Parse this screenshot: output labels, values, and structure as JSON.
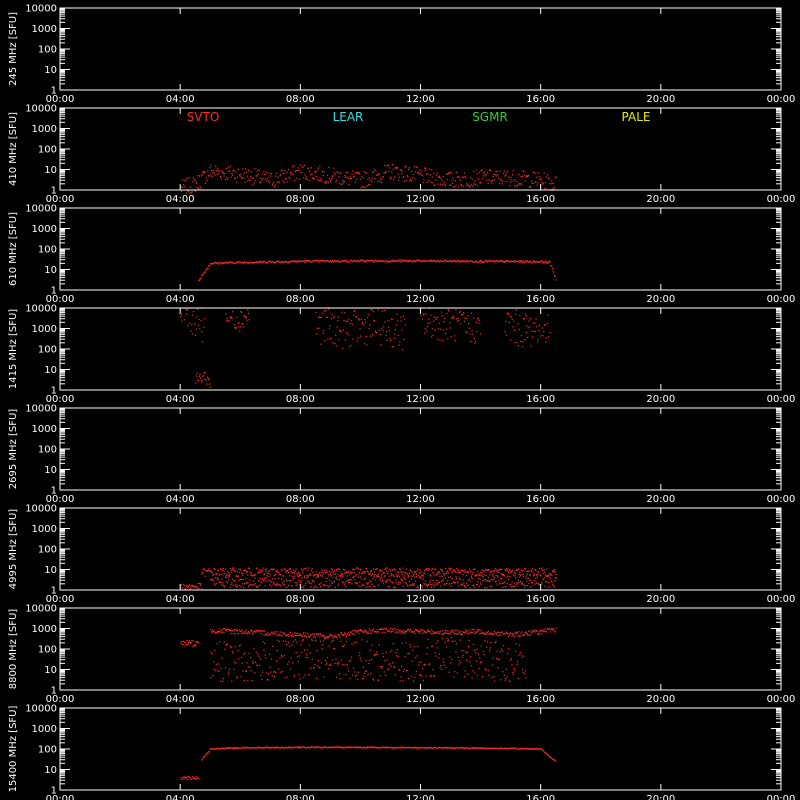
{
  "chart_data": {
    "type": "scatter",
    "x_ticks": [
      "00:00",
      "04:00",
      "08:00",
      "12:00",
      "16:00",
      "20:00",
      "00:00"
    ],
    "y_ticks": [
      "1",
      "10",
      "100",
      "1000",
      "10000"
    ],
    "y_scale": "log",
    "ylim": [
      1,
      10000
    ],
    "xlim_hours": [
      0,
      24
    ],
    "colors": {
      "SVTO": "#ff2a2a",
      "LEAR": "#33dddd",
      "SGMR": "#33cc33",
      "PALE": "#e8e800"
    },
    "legend": [
      {
        "name": "SVTO",
        "color": "#ff2a2a"
      },
      {
        "name": "LEAR",
        "color": "#33dddd"
      },
      {
        "name": "SGMR",
        "color": "#33cc33"
      },
      {
        "name": "PALE",
        "color": "#e8e800"
      }
    ],
    "panels": [
      {
        "ylabel": "245 MHz [SFU]",
        "segments": []
      },
      {
        "ylabel": "410 MHz [SFU]",
        "segments": [
          {
            "x": [
              4.0,
              4.5,
              5.0,
              6.0,
              7.0,
              8.0,
              9.0,
              10.0,
              11.0,
              12.0,
              13.0,
              14.0,
              15.0,
              16.0,
              16.5
            ],
            "y": [
              1.2,
              2,
              8,
              6,
              3,
              8,
              5,
              3,
              8,
              5,
              3,
              4,
              4,
              3,
              2
            ],
            "spread": 0.4
          }
        ]
      },
      {
        "ylabel": "610 MHz [SFU]",
        "segments": [
          {
            "x": [
              4.6,
              5.0,
              6.0,
              8.0,
              10.0,
              12.0,
              14.0,
              16.0,
              16.3,
              16.5
            ],
            "y": [
              3,
              20,
              22,
              25,
              26,
              26,
              25,
              24,
              22,
              3
            ],
            "spread": 0.05
          }
        ]
      },
      {
        "ylabel": "1415 MHz [SFU]",
        "segments": [
          {
            "x": [
              4.0,
              4.2,
              4.4,
              4.8
            ],
            "y": [
              3000,
              8000,
              6000,
              3000
            ],
            "spread": 1.2
          },
          {
            "x": [
              4.5,
              4.8,
              5.0
            ],
            "y": [
              3,
              5,
              2
            ],
            "spread": 0.3
          },
          {
            "x": [
              5.5,
              6.0,
              6.3
            ],
            "y": [
              4000,
              3000,
              5000
            ],
            "spread": 0.6
          },
          {
            "x": [
              8.5,
              9.5,
              10.5,
              11.5
            ],
            "y": [
              1500,
              800,
              1500,
              600
            ],
            "spread": 0.9
          },
          {
            "x": [
              12.0,
              13.0,
              14.0
            ],
            "y": [
              2000,
              1500,
              1000
            ],
            "spread": 0.8
          },
          {
            "x": [
              14.8,
              15.5,
              16.3
            ],
            "y": [
              1500,
              800,
              2000
            ],
            "spread": 0.9
          }
        ]
      },
      {
        "ylabel": "2695 MHz [SFU]",
        "segments": []
      },
      {
        "ylabel": "4995 MHz [SFU]",
        "segments": [
          {
            "x": [
              4.0,
              4.7
            ],
            "y": [
              1.5,
              1.5
            ],
            "spread": 0.15
          },
          {
            "x": [
              4.7,
              5.0,
              8.0,
              12.0,
              16.0,
              16.5
            ],
            "y": [
              7,
              7.5,
              7.5,
              7.5,
              7.5,
              7.5
            ],
            "spread": 0.2
          },
          {
            "x": [
              5.0,
              8.0,
              12.0,
              16.5
            ],
            "y": [
              2.5,
              2.5,
              2.5,
              2.5
            ],
            "spread": 0.3
          }
        ]
      },
      {
        "ylabel": "8800 MHz [SFU]",
        "segments": [
          {
            "x": [
              4.0,
              4.6
            ],
            "y": [
              200,
              180
            ],
            "spread": 0.15
          },
          {
            "x": [
              5.0,
              6.0,
              8.0,
              9.0,
              10.0,
              11.0,
              12.0,
              13.0,
              14.0,
              15.0,
              16.0,
              16.5
            ],
            "y": [
              800,
              700,
              500,
              400,
              700,
              800,
              700,
              650,
              700,
              500,
              700,
              800
            ],
            "spread": 0.12
          },
          {
            "x": [
              5.0,
              6.0,
              9.0,
              11.0,
              13.0,
              15.5
            ],
            "y": [
              30,
              20,
              40,
              20,
              40,
              20
            ],
            "spread": 1.0
          }
        ]
      },
      {
        "ylabel": "15400 MHz [SFU]",
        "segments": [
          {
            "x": [
              4.0,
              4.6
            ],
            "y": [
              4,
              4
            ],
            "spread": 0.1
          },
          {
            "x": [
              4.7,
              5.0,
              6.0,
              8.0,
              10.0,
              12.0,
              14.0,
              16.0,
              16.3,
              16.5
            ],
            "y": [
              30,
              100,
              115,
              120,
              120,
              115,
              110,
              100,
              40,
              25
            ],
            "spread": 0.03
          }
        ]
      }
    ]
  }
}
